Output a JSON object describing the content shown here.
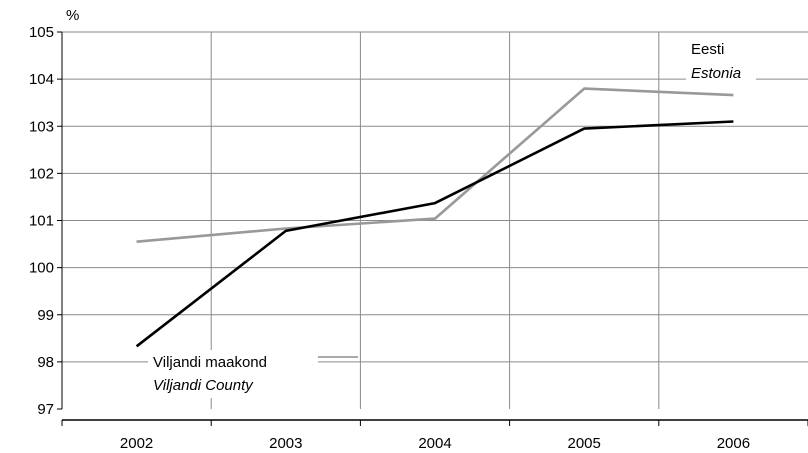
{
  "chart_data": {
    "type": "line",
    "title": "",
    "xlabel": "",
    "ylabel": "%",
    "categories": [
      "2002",
      "2003",
      "2004",
      "2005",
      "2006"
    ],
    "ylim": [
      97,
      105
    ],
    "yticks": [
      97,
      98,
      99,
      100,
      101,
      102,
      103,
      104,
      105
    ],
    "grid": true,
    "series": [
      {
        "name": "Viljandi maakond / Viljandi County",
        "color": "#000000",
        "values": [
          98.33,
          100.78,
          101.37,
          102.95,
          103.1
        ]
      },
      {
        "name": "Eesti / Estonia",
        "color": "#999999",
        "values": [
          100.55,
          100.83,
          101.04,
          103.8,
          103.66
        ]
      }
    ],
    "annotations": {
      "estonia_line1": "Eesti",
      "estonia_line2": "Estonia",
      "viljandi_line1": "Viljandi maakond",
      "viljandi_line2": "Viljandi County"
    }
  }
}
